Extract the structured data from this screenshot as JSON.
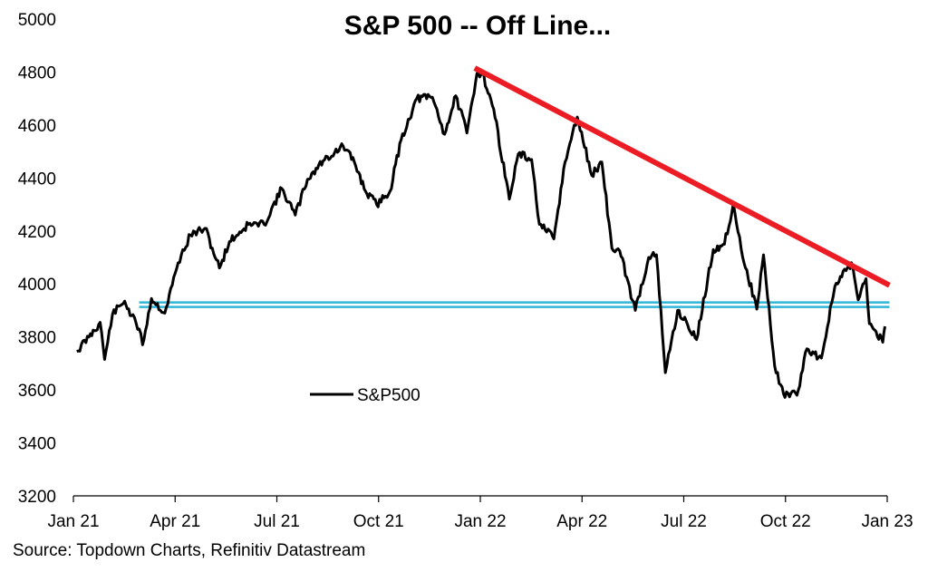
{
  "chart_data": {
    "type": "line",
    "title": "S&P 500 -- Off Line...",
    "xlabel": "",
    "ylabel": "",
    "x_tick_labels": [
      "Jan 21",
      "Apr 21",
      "Jul 21",
      "Oct 21",
      "Jan 22",
      "Apr 22",
      "Jul 22",
      "Oct 22",
      "Jan 23"
    ],
    "y_tick_labels": [
      "3200",
      "3400",
      "3600",
      "3800",
      "4000",
      "4200",
      "4400",
      "4600",
      "4800",
      "5000"
    ],
    "ylim": [
      3200,
      5000
    ],
    "xlim": [
      "2021-01-01",
      "2023-01-01"
    ],
    "grid": false,
    "legend": {
      "position": "center-left",
      "entries": [
        "S&P500"
      ]
    },
    "series": [
      {
        "name": "S&P500",
        "color": "#000000",
        "x": [
          "2021-01-04",
          "2021-01-15",
          "2021-01-25",
          "2021-01-29",
          "2021-02-05",
          "2021-02-16",
          "2021-02-22",
          "2021-03-01",
          "2021-03-04",
          "2021-03-12",
          "2021-03-24",
          "2021-04-05",
          "2021-04-16",
          "2021-04-29",
          "2021-05-12",
          "2021-05-21",
          "2021-06-07",
          "2021-06-21",
          "2021-07-07",
          "2021-07-19",
          "2021-07-30",
          "2021-08-13",
          "2021-08-31",
          "2021-09-10",
          "2021-09-20",
          "2021-09-30",
          "2021-10-12",
          "2021-10-22",
          "2021-11-05",
          "2021-11-19",
          "2021-11-30",
          "2021-12-10",
          "2021-12-20",
          "2021-12-29",
          "2022-01-03",
          "2022-01-13",
          "2022-01-27",
          "2022-02-04",
          "2022-02-16",
          "2022-02-23",
          "2022-03-08",
          "2022-03-18",
          "2022-03-29",
          "2022-04-11",
          "2022-04-20",
          "2022-04-29",
          "2022-05-06",
          "2022-05-20",
          "2022-06-01",
          "2022-06-08",
          "2022-06-16",
          "2022-06-27",
          "2022-07-06",
          "2022-07-14",
          "2022-07-29",
          "2022-08-08",
          "2022-08-16",
          "2022-08-23",
          "2022-09-06",
          "2022-09-12",
          "2022-09-22",
          "2022-09-30",
          "2022-10-12",
          "2022-10-21",
          "2022-11-03",
          "2022-11-15",
          "2022-11-30",
          "2022-12-06",
          "2022-12-13",
          "2022-12-16",
          "2022-12-22",
          "2022-12-28",
          "2022-12-30"
        ],
        "y": [
          3745,
          3800,
          3855,
          3715,
          3885,
          3935,
          3880,
          3830,
          3770,
          3945,
          3890,
          4080,
          4185,
          4210,
          4060,
          4160,
          4225,
          4225,
          4360,
          4260,
          4395,
          4465,
          4520,
          4460,
          4350,
          4300,
          4350,
          4545,
          4700,
          4705,
          4565,
          4710,
          4570,
          4795,
          4795,
          4660,
          4320,
          4490,
          4470,
          4225,
          4170,
          4460,
          4630,
          4410,
          4460,
          4135,
          4125,
          3900,
          4100,
          4110,
          3665,
          3900,
          3845,
          3790,
          4130,
          4150,
          4305,
          4130,
          3905,
          4110,
          3690,
          3585,
          3580,
          3755,
          3720,
          3990,
          4080,
          3940,
          4020,
          3850,
          3820,
          3780,
          3840
        ]
      }
    ],
    "annotations": {
      "downtrend_line": {
        "color": "#ec1c24",
        "x": [
          "2021-12-27",
          "2023-01-03"
        ],
        "y": [
          4815,
          3995
        ]
      },
      "support_band": {
        "color": "#31b6d8",
        "x": [
          "2021-03-01",
          "2023-01-03"
        ],
        "upper": 3930,
        "lower": 3913
      }
    }
  },
  "source_text": "Source: Topdown Charts, Refinitiv Datastream"
}
